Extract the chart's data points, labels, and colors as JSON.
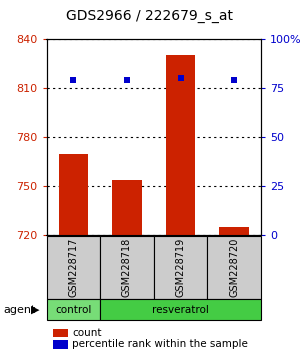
{
  "title": "GDS2966 / 222679_s_at",
  "samples": [
    "GSM228717",
    "GSM228718",
    "GSM228719",
    "GSM228720"
  ],
  "counts": [
    770,
    754,
    830,
    725
  ],
  "percentile_ranks": [
    79,
    79,
    80,
    79
  ],
  "ylim_left": [
    720,
    840
  ],
  "ylim_right": [
    0,
    100
  ],
  "yticks_left": [
    720,
    750,
    780,
    810,
    840
  ],
  "yticks_right": [
    0,
    25,
    50,
    75,
    100
  ],
  "ytick_labels_right": [
    "0",
    "25",
    "50",
    "75",
    "100%"
  ],
  "bar_color": "#cc2200",
  "dot_color": "#0000cc",
  "bg_color": "#ffffff",
  "sample_bg": "#cccccc",
  "control_color": "#77dd77",
  "resveratrol_color": "#44cc44",
  "agent_label": "agent",
  "control_label": "control",
  "resveratrol_label": "resveratrol",
  "legend_count_label": "count",
  "legend_percentile_label": "percentile rank within the sample",
  "bar_width": 0.55,
  "title_fontsize": 10,
  "tick_fontsize": 8,
  "sample_fontsize": 7,
  "agent_fontsize": 7.5,
  "legend_fontsize": 7.5
}
